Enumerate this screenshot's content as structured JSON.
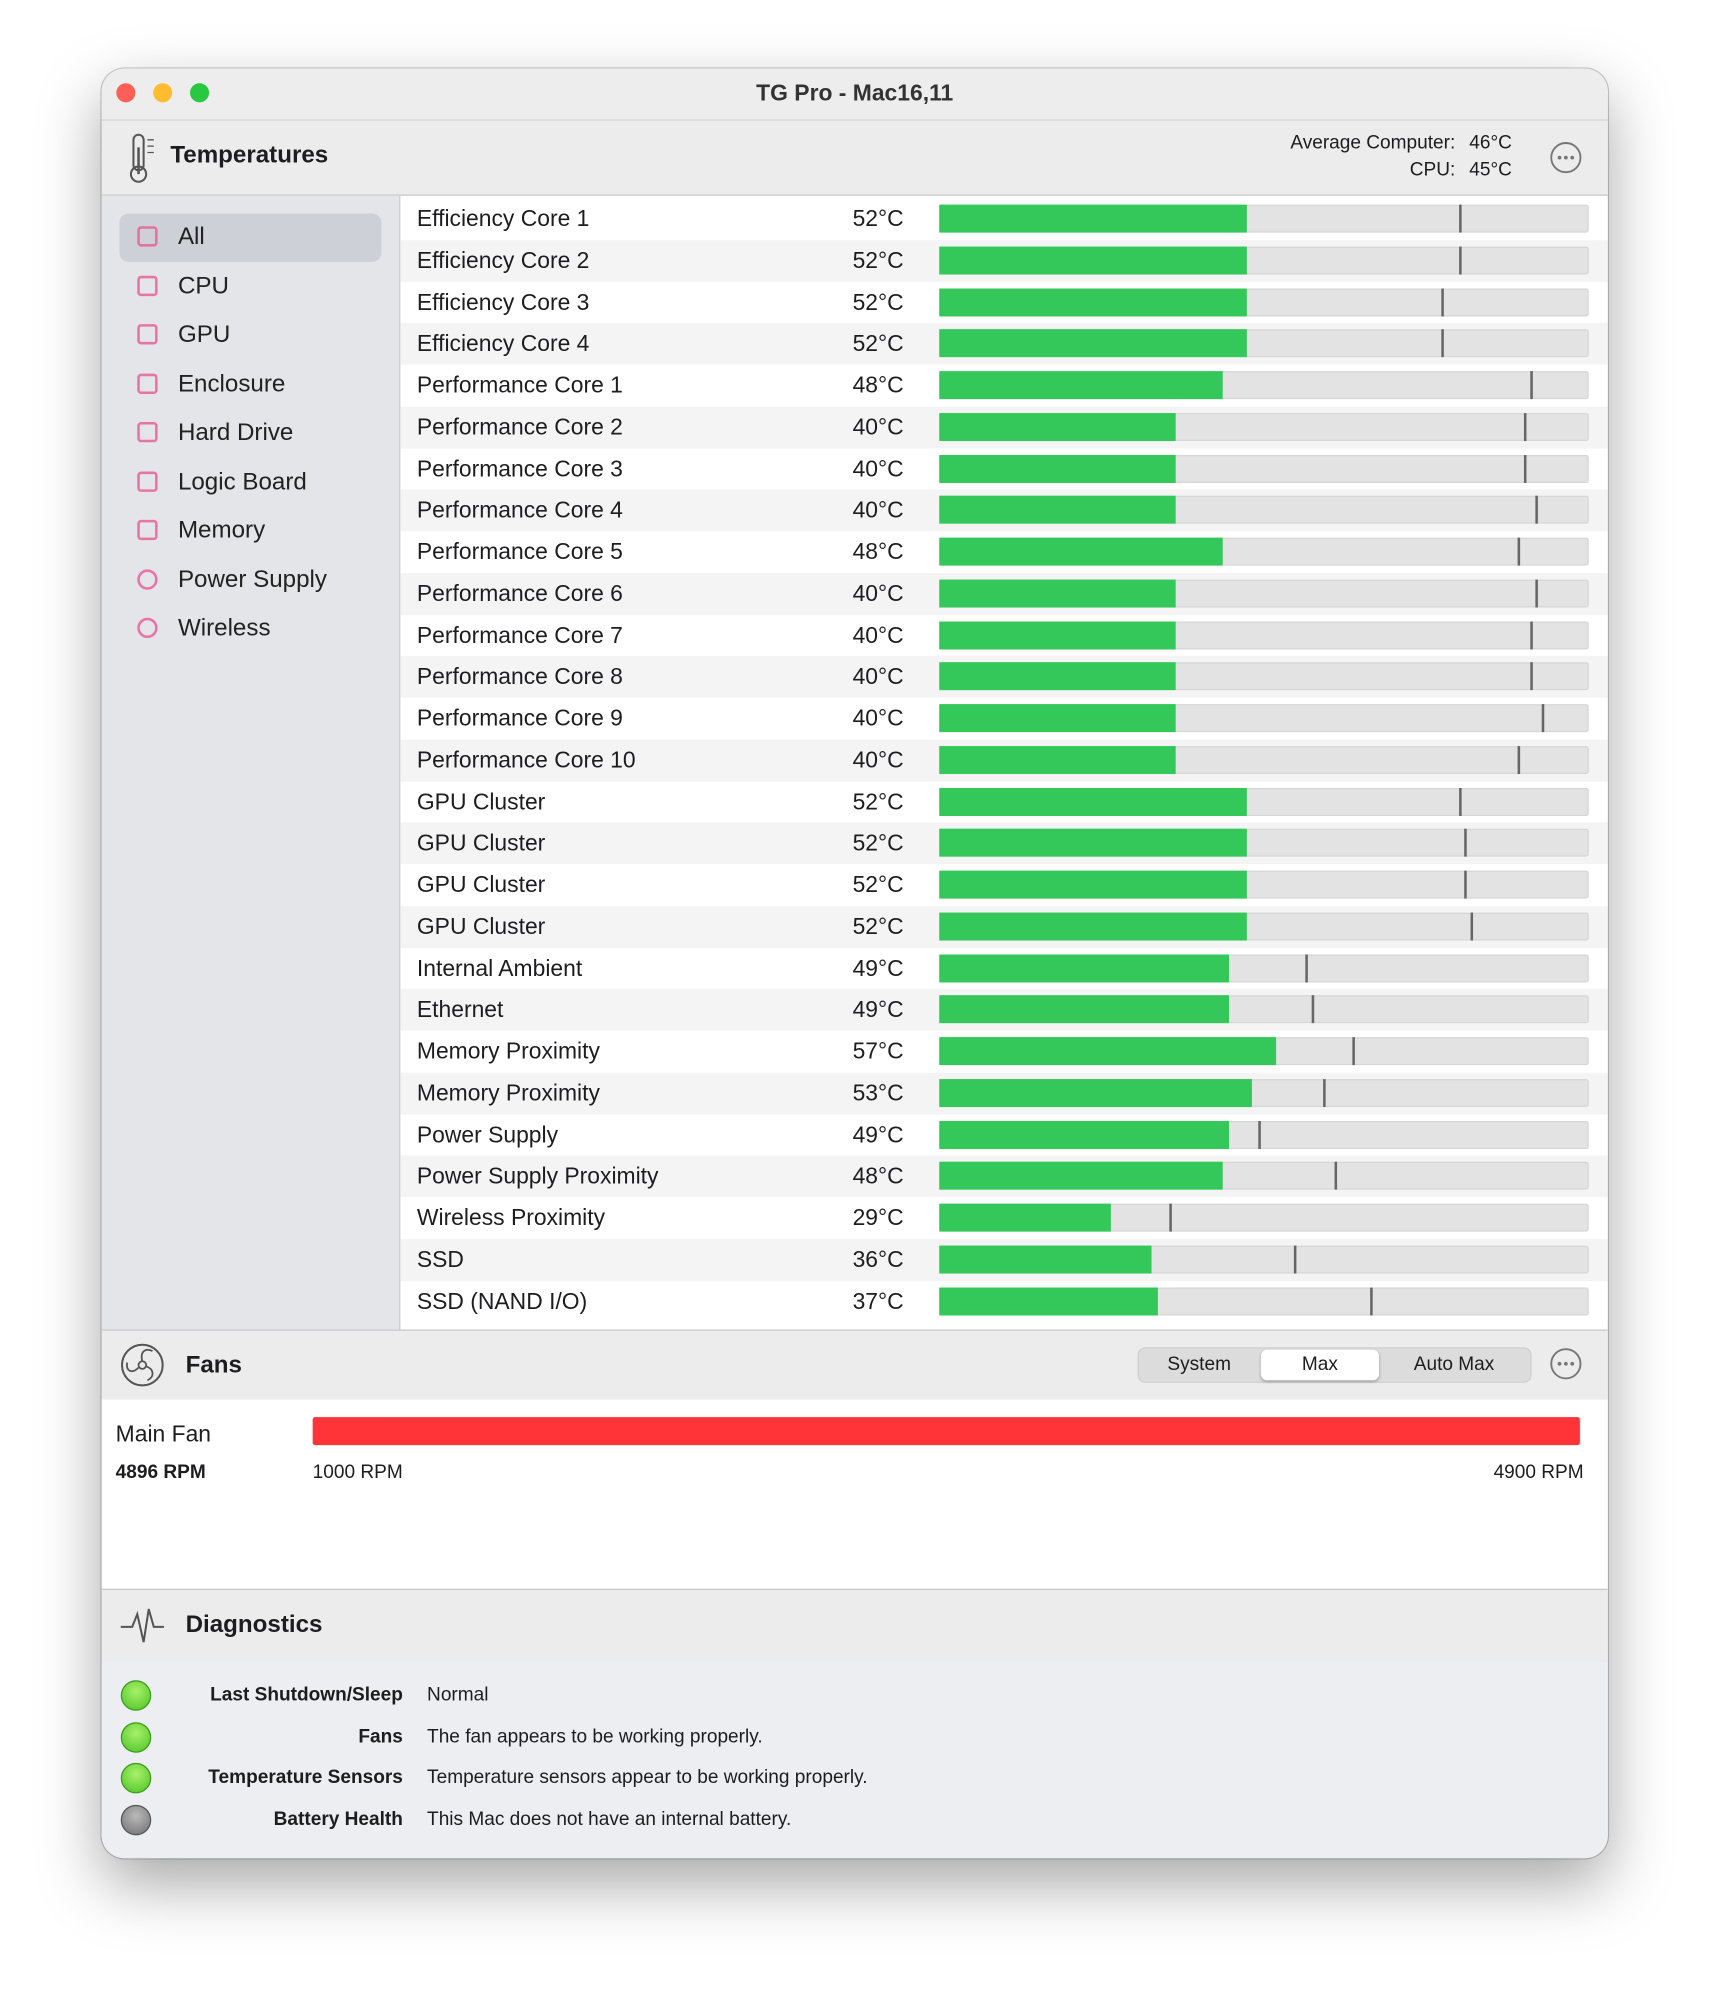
{
  "window": {
    "title": "TG Pro - Mac16,11"
  },
  "temperatures": {
    "title": "Temperatures",
    "average_label": "Average Computer:",
    "average_value": "46°C",
    "cpu_label": "CPU:",
    "cpu_value": "45°C",
    "sidebar": [
      "All",
      "CPU",
      "GPU",
      "Enclosure",
      "Hard Drive",
      "Logic Board",
      "Memory",
      "Power Supply",
      "Wireless"
    ],
    "rows": [
      {
        "name": "Efficiency Core 1",
        "value": 52,
        "label": "52°C",
        "max": 88
      },
      {
        "name": "Efficiency Core 2",
        "value": 52,
        "label": "52°C",
        "max": 88
      },
      {
        "name": "Efficiency Core 3",
        "value": 52,
        "label": "52°C",
        "max": 85
      },
      {
        "name": "Efficiency Core 4",
        "value": 52,
        "label": "52°C",
        "max": 85
      },
      {
        "name": "Performance Core 1",
        "value": 48,
        "label": "48°C",
        "max": 100
      },
      {
        "name": "Performance Core 2",
        "value": 40,
        "label": "40°C",
        "max": 99
      },
      {
        "name": "Performance Core 3",
        "value": 40,
        "label": "40°C",
        "max": 99
      },
      {
        "name": "Performance Core 4",
        "value": 40,
        "label": "40°C",
        "max": 101
      },
      {
        "name": "Performance Core 5",
        "value": 48,
        "label": "48°C",
        "max": 98
      },
      {
        "name": "Performance Core 6",
        "value": 40,
        "label": "40°C",
        "max": 101
      },
      {
        "name": "Performance Core 7",
        "value": 40,
        "label": "40°C",
        "max": 100
      },
      {
        "name": "Performance Core 8",
        "value": 40,
        "label": "40°C",
        "max": 100
      },
      {
        "name": "Performance Core 9",
        "value": 40,
        "label": "40°C",
        "max": 102
      },
      {
        "name": "Performance Core 10",
        "value": 40,
        "label": "40°C",
        "max": 98
      },
      {
        "name": "GPU Cluster",
        "value": 52,
        "label": "52°C",
        "max": 88
      },
      {
        "name": "GPU Cluster",
        "value": 52,
        "label": "52°C",
        "max": 89
      },
      {
        "name": "GPU Cluster",
        "value": 52,
        "label": "52°C",
        "max": 89
      },
      {
        "name": "GPU Cluster",
        "value": 52,
        "label": "52°C",
        "max": 90
      },
      {
        "name": "Internal Ambient",
        "value": 49,
        "label": "49°C",
        "max": 62
      },
      {
        "name": "Ethernet",
        "value": 49,
        "label": "49°C",
        "max": 63
      },
      {
        "name": "Memory Proximity",
        "value": 57,
        "label": "57°C",
        "max": 70
      },
      {
        "name": "Memory Proximity",
        "value": 53,
        "label": "53°C",
        "max": 65
      },
      {
        "name": "Power Supply",
        "value": 49,
        "label": "49°C",
        "max": 54
      },
      {
        "name": "Power Supply Proximity",
        "value": 48,
        "label": "48°C",
        "max": 67
      },
      {
        "name": "Wireless Proximity",
        "value": 29,
        "label": "29°C",
        "max": 39
      },
      {
        "name": "SSD",
        "value": 36,
        "label": "36°C",
        "max": 60
      },
      {
        "name": "SSD (NAND I/O)",
        "value": 37,
        "label": "37°C",
        "max": 73
      }
    ]
  },
  "fans": {
    "title": "Fans",
    "modes": [
      "System",
      "Max",
      "Auto Max"
    ],
    "selected_mode": 1,
    "fan": {
      "name": "Main Fan",
      "rpm": 4896,
      "rpm_label": "4896 RPM",
      "min": {
        "value": 1000,
        "label": "1000 RPM"
      },
      "max": {
        "value": 4900,
        "label": "4900 RPM"
      },
      "color": "#fe3438"
    }
  },
  "diagnostics": {
    "title": "Diagnostics",
    "items": [
      {
        "label": "Last Shutdown/Sleep",
        "text": "Normal",
        "status": "ok"
      },
      {
        "label": "Fans",
        "text": "The fan appears to be working properly.",
        "status": "ok"
      },
      {
        "label": "Temperature Sensors",
        "text": "Temperature sensors appear to be working properly.",
        "status": "ok"
      },
      {
        "label": "Battery Health",
        "text": "This Mac does not have an internal battery.",
        "status": "none"
      }
    ]
  }
}
